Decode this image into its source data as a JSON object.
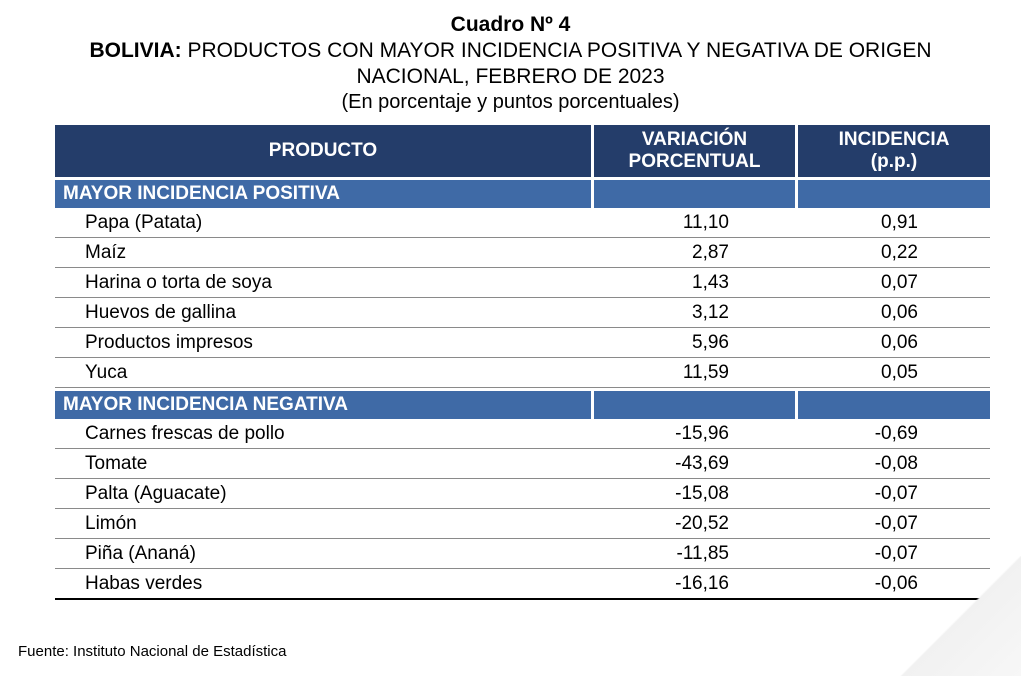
{
  "title": {
    "number": "Cuadro Nº 4",
    "country": "BOLIVIA:",
    "line1_rest": " PRODUCTOS CON MAYOR INCIDENCIA POSITIVA Y NEGATIVA DE ORIGEN",
    "line2": "NACIONAL, FEBRERO DE 2023",
    "units": "(En porcentaje y puntos porcentuales)"
  },
  "table": {
    "headers": {
      "product": "PRODUCTO",
      "variation_line1": "VARIACIÓN",
      "variation_line2": "PORCENTUAL",
      "incidence_line1": "INCIDENCIA",
      "incidence_line2": "(p.p.)"
    },
    "sections": [
      {
        "label": "MAYOR INCIDENCIA POSITIVA",
        "rows": [
          {
            "product": "Papa (Patata)",
            "variation": "11,10",
            "incidence": "0,91"
          },
          {
            "product": "Maíz",
            "variation": "2,87",
            "incidence": "0,22"
          },
          {
            "product": "Harina o torta de soya",
            "variation": "1,43",
            "incidence": "0,07"
          },
          {
            "product": "Huevos de gallina",
            "variation": "3,12",
            "incidence": "0,06"
          },
          {
            "product": "Productos impresos",
            "variation": "5,96",
            "incidence": "0,06"
          },
          {
            "product": "Yuca",
            "variation": "11,59",
            "incidence": "0,05"
          }
        ]
      },
      {
        "label": "MAYOR INCIDENCIA NEGATIVA",
        "rows": [
          {
            "product": "Carnes frescas de pollo",
            "variation": "-15,96",
            "incidence": "-0,69"
          },
          {
            "product": "Tomate",
            "variation": "-43,69",
            "incidence": "-0,08"
          },
          {
            "product": "Palta (Aguacate)",
            "variation": "-15,08",
            "incidence": "-0,07"
          },
          {
            "product": "Limón",
            "variation": "-20,52",
            "incidence": "-0,07"
          },
          {
            "product": "Piña (Ananá)",
            "variation": "-11,85",
            "incidence": "-0,07"
          },
          {
            "product": "Habas verdes",
            "variation": "-16,16",
            "incidence": "-0,06"
          }
        ]
      }
    ]
  },
  "source": "Fuente: Instituto Nacional de Estadística",
  "colors": {
    "header_bg": "#243d6a",
    "section_bg": "#3f6aa6"
  }
}
